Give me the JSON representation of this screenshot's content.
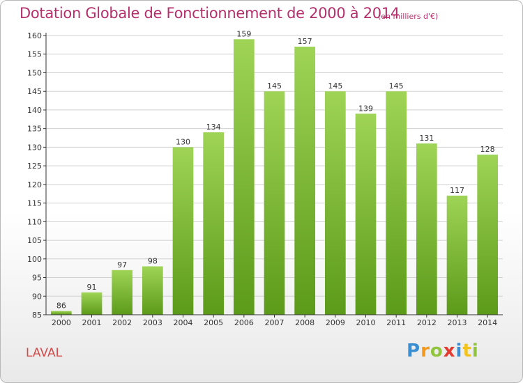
{
  "title": "Dotation Globale de Fonctionnement de 2000 à 2014",
  "subtitle": "(en milliers d'€)",
  "commune": "LAVAL",
  "logo": {
    "letters": [
      {
        "ch": "P",
        "color": "#3a8fd3"
      },
      {
        "ch": "r",
        "color": "#f29a1d"
      },
      {
        "ch": "o",
        "color": "#8fc43c"
      },
      {
        "ch": "x",
        "color": "#e23a2e"
      },
      {
        "ch": "i",
        "color": "#3a8fd3"
      },
      {
        "ch": "t",
        "color": "#f2c21d"
      },
      {
        "ch": "i",
        "color": "#8fc43c"
      }
    ]
  },
  "colors": {
    "title": "#b52f6b",
    "bar_top": "#9fd456",
    "bar_bottom": "#5c9a1a",
    "grid": "#d0d0d0",
    "axis": "#333333"
  },
  "chart_data": {
    "type": "bar",
    "title": "Dotation Globale de Fonctionnement de 2000 à 2014",
    "subtitle": "(en milliers d'€)",
    "categories": [
      "2000",
      "2001",
      "2002",
      "2003",
      "2004",
      "2005",
      "2006",
      "2007",
      "2008",
      "2009",
      "2010",
      "2011",
      "2012",
      "2013",
      "2014"
    ],
    "values": [
      86,
      91,
      97,
      98,
      130,
      134,
      159,
      145,
      157,
      145,
      139,
      145,
      131,
      117,
      128
    ],
    "ylim": [
      85,
      160
    ],
    "yticks": [
      85,
      90,
      95,
      100,
      105,
      110,
      115,
      120,
      125,
      130,
      135,
      140,
      145,
      150,
      155,
      160
    ],
    "grid": true,
    "data_labels": true
  }
}
